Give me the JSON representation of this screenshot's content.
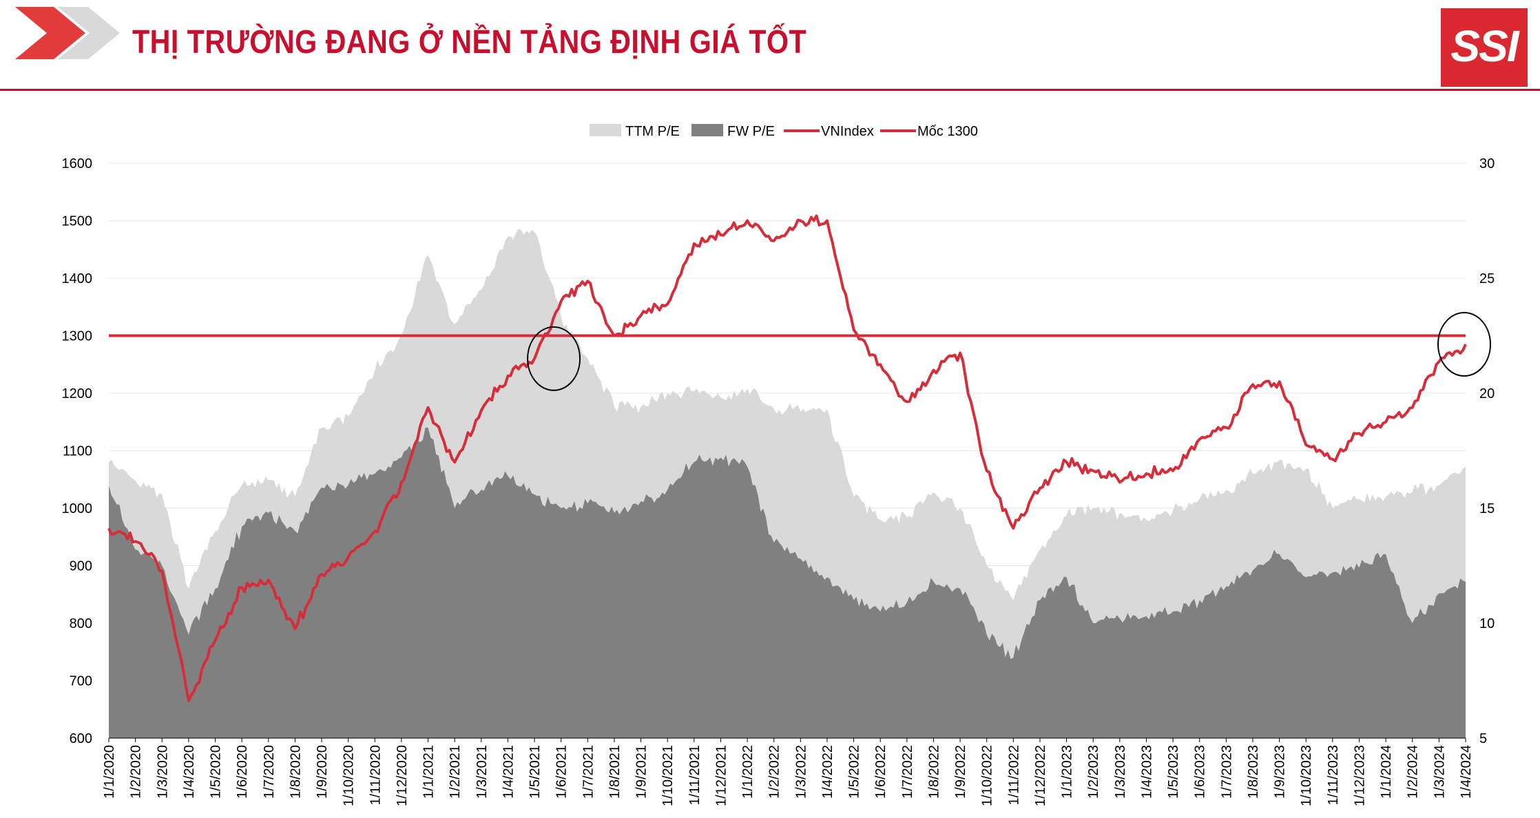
{
  "header": {
    "title": "THỊ TRƯỜNG ĐANG Ở NỀN TẢNG ĐỊNH GIÁ TỐT",
    "logo": "SSI"
  },
  "colors": {
    "accent": "#c8102e",
    "ttm": "#d9d9d9",
    "fw": "#808080",
    "vnindex": "#d62d3b",
    "moc": "#d62d3b"
  },
  "chart_data": {
    "type": "area",
    "title": "",
    "xlabel": "",
    "ylabel": "",
    "ylim_left": [
      600,
      1600
    ],
    "ylim_right": [
      5,
      30
    ],
    "grid": true,
    "legend": "top-center",
    "left_ticks": [
      "600",
      "700",
      "800",
      "900",
      "1000",
      "1100",
      "1200",
      "1300",
      "1400",
      "1500",
      "1600"
    ],
    "right_ticks": [
      "5",
      "10",
      "15",
      "20",
      "25",
      "30"
    ],
    "x_ticks": [
      "1/1/2020",
      "1/2/2020",
      "1/3/2020",
      "1/4/2020",
      "1/5/2020",
      "1/6/2020",
      "1/7/2020",
      "1/8/2020",
      "1/9/2020",
      "1/10/2020",
      "1/11/2020",
      "1/12/2020",
      "1/1/2021",
      "1/2/2021",
      "1/3/2021",
      "1/4/2021",
      "1/5/2021",
      "1/6/2021",
      "1/7/2021",
      "1/8/2021",
      "1/9/2021",
      "1/10/2021",
      "1/11/2021",
      "1/12/2021",
      "1/1/2022",
      "1/2/2022",
      "1/3/2022",
      "1/4/2022",
      "1/5/2022",
      "1/6/2022",
      "1/7/2022",
      "1/8/2022",
      "1/9/2022",
      "1/10/2022",
      "1/11/2022",
      "1/12/2022",
      "1/1/2023",
      "1/2/2023",
      "1/3/2023",
      "1/4/2023",
      "1/5/2023",
      "1/6/2023",
      "1/7/2023",
      "1/8/2023",
      "1/9/2023",
      "1/10/2023",
      "1/11/2023",
      "1/12/2023",
      "1/1/2024",
      "1/2/2024",
      "1/3/2024",
      "1/4/2024"
    ],
    "annotations": [
      {
        "type": "circle",
        "x": "1/5/2021",
        "y": 1260
      },
      {
        "type": "circle",
        "x": "1/4/2024",
        "y": 1285
      }
    ],
    "series": [
      {
        "name": "TTM P/E",
        "type": "area",
        "axis": "right",
        "x": [
          "1/1/2020",
          "1/2/2020",
          "1/3/2020",
          "1/4/2020",
          "1/5/2020",
          "1/6/2020",
          "1/7/2020",
          "1/8/2020",
          "1/9/2020",
          "1/10/2020",
          "1/11/2020",
          "1/12/2020",
          "1/1/2021",
          "1/2/2021",
          "1/3/2021",
          "1/4/2021",
          "1/5/2021",
          "1/6/2021",
          "1/7/2021",
          "1/8/2021",
          "1/9/2021",
          "1/10/2021",
          "1/11/2021",
          "1/12/2021",
          "1/1/2022",
          "1/2/2022",
          "1/3/2022",
          "1/4/2022",
          "1/5/2022",
          "1/6/2022",
          "1/7/2022",
          "1/8/2022",
          "1/9/2022",
          "1/10/2022",
          "1/11/2022",
          "1/12/2022",
          "1/1/2023",
          "1/2/2023",
          "1/3/2023",
          "1/4/2023",
          "1/5/2023",
          "1/6/2023",
          "1/7/2023",
          "1/8/2023",
          "1/9/2023",
          "1/10/2023",
          "1/11/2023",
          "1/12/2023",
          "1/1/2024",
          "1/2/2024",
          "1/3/2024",
          "1/4/2024"
        ],
        "values": [
          17.0,
          16.2,
          15.6,
          11.5,
          14.0,
          16.0,
          16.2,
          15.5,
          18.5,
          19.0,
          21.0,
          22.5,
          26.0,
          23.0,
          24.5,
          26.8,
          27.0,
          23.3,
          21.5,
          19.4,
          19.4,
          20.0,
          20.1,
          19.8,
          20.2,
          19.3,
          19.2,
          19.3,
          15.5,
          14.5,
          14.6,
          15.7,
          15.0,
          12.5,
          11.0,
          13.2,
          14.7,
          15.0,
          14.8,
          14.5,
          14.9,
          15.4,
          15.8,
          16.5,
          17.1,
          16.7,
          15.0,
          15.4,
          15.5,
          15.7,
          16.0,
          16.8
        ]
      },
      {
        "name": "FW P/E",
        "type": "area",
        "axis": "right",
        "x": [
          "1/1/2020",
          "1/2/2020",
          "1/3/2020",
          "1/4/2020",
          "1/5/2020",
          "1/6/2020",
          "1/7/2020",
          "1/8/2020",
          "1/9/2020",
          "1/10/2020",
          "1/11/2020",
          "1/12/2020",
          "1/1/2021",
          "1/2/2021",
          "1/3/2021",
          "1/4/2021",
          "1/5/2021",
          "1/6/2021",
          "1/7/2021",
          "1/8/2021",
          "1/9/2021",
          "1/10/2021",
          "1/11/2021",
          "1/12/2021",
          "1/1/2022",
          "1/2/2022",
          "1/3/2022",
          "1/4/2022",
          "1/5/2022",
          "1/6/2022",
          "1/7/2022",
          "1/8/2022",
          "1/9/2022",
          "1/10/2022",
          "1/11/2022",
          "1/12/2022",
          "1/1/2023",
          "1/2/2023",
          "1/3/2023",
          "1/4/2023",
          "1/5/2023",
          "1/6/2023",
          "1/7/2023",
          "1/8/2023",
          "1/9/2023",
          "1/10/2023",
          "1/11/2023",
          "1/12/2023",
          "1/1/2024",
          "1/2/2024",
          "1/3/2024",
          "1/4/2024"
        ],
        "values": [
          16.0,
          13.2,
          12.5,
          9.5,
          11.5,
          14.2,
          14.8,
          14.0,
          15.9,
          16.0,
          16.5,
          17.2,
          18.5,
          15.0,
          15.8,
          16.4,
          15.6,
          15.0,
          15.2,
          14.8,
          15.3,
          15.8,
          17.0,
          17.2,
          16.8,
          13.5,
          12.8,
          12.0,
          11.0,
          10.5,
          10.9,
          11.8,
          11.5,
          9.5,
          8.5,
          11.0,
          12.0,
          10.0,
          10.2,
          10.3,
          10.5,
          11.0,
          11.6,
          12.3,
          13.0,
          12.0,
          12.2,
          12.4,
          13.0,
          10.0,
          11.3,
          11.8
        ]
      },
      {
        "name": "VNIndex",
        "type": "line",
        "axis": "left",
        "x": [
          "1/1/2020",
          "1/2/2020",
          "1/3/2020",
          "1/4/2020",
          "1/5/2020",
          "1/6/2020",
          "1/7/2020",
          "1/8/2020",
          "1/9/2020",
          "1/10/2020",
          "1/11/2020",
          "1/12/2020",
          "1/1/2021",
          "1/2/2021",
          "1/3/2021",
          "1/4/2021",
          "1/5/2021",
          "1/6/2021",
          "1/7/2021",
          "1/8/2021",
          "1/9/2021",
          "1/10/2021",
          "1/11/2021",
          "1/12/2021",
          "1/1/2022",
          "1/2/2022",
          "1/3/2022",
          "1/4/2022",
          "1/5/2022",
          "1/6/2022",
          "1/7/2022",
          "1/8/2022",
          "1/9/2022",
          "1/10/2022",
          "1/11/2022",
          "1/12/2022",
          "1/1/2023",
          "1/2/2023",
          "1/3/2023",
          "1/4/2023",
          "1/5/2023",
          "1/6/2023",
          "1/7/2023",
          "1/8/2023",
          "1/9/2023",
          "1/10/2023",
          "1/11/2023",
          "1/12/2023",
          "1/1/2024",
          "1/2/2024",
          "1/3/2024",
          "1/4/2024"
        ],
        "values": [
          965,
          942,
          890,
          665,
          770,
          862,
          875,
          790,
          885,
          915,
          960,
          1045,
          1175,
          1080,
          1170,
          1230,
          1260,
          1360,
          1395,
          1300,
          1335,
          1355,
          1460,
          1475,
          1500,
          1465,
          1500,
          1500,
          1310,
          1250,
          1185,
          1240,
          1270,
          1065,
          965,
          1035,
          1080,
          1065,
          1045,
          1060,
          1065,
          1120,
          1140,
          1215,
          1220,
          1110,
          1085,
          1130,
          1150,
          1175,
          1255,
          1285
        ]
      },
      {
        "name": "Mốc 1300",
        "type": "line",
        "axis": "left",
        "x": [
          "1/1/2020",
          "1/4/2024"
        ],
        "values": [
          1300,
          1300
        ]
      }
    ]
  }
}
